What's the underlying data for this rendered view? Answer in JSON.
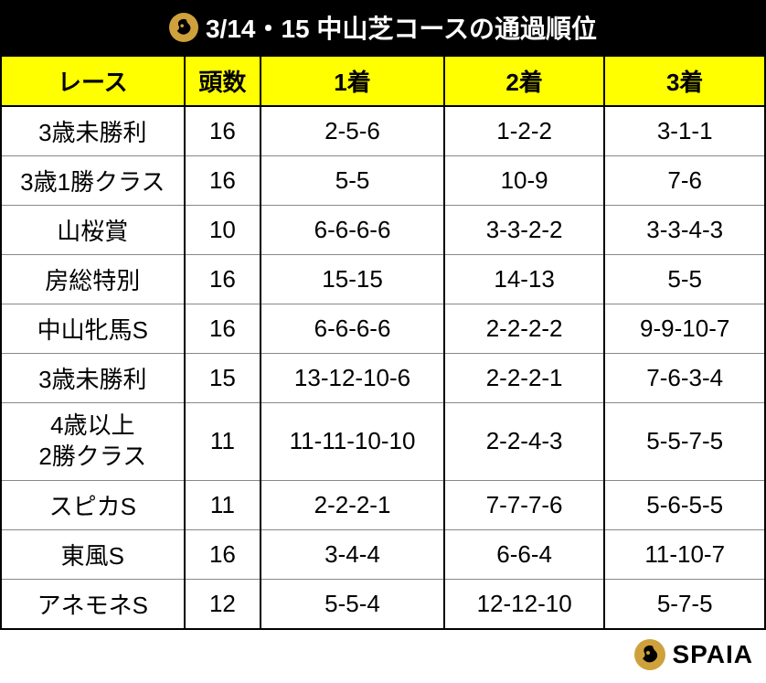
{
  "title": {
    "text": "3/14・15 中山芝コースの通過順位",
    "background_color": "#000000",
    "text_color": "#ffffff",
    "fontsize": 28
  },
  "table": {
    "header_background": "#ffff00",
    "header_color": "#000000",
    "cell_fontsize": 26,
    "border_color": "#000000",
    "row_border_color": "#888888",
    "columns": [
      {
        "label": "レース",
        "width": "24%"
      },
      {
        "label": "頭数",
        "width": "10%"
      },
      {
        "label": "1着",
        "width": "24%"
      },
      {
        "label": "2着",
        "width": "21%"
      },
      {
        "label": "3着",
        "width": "21%"
      }
    ],
    "rows": [
      {
        "race": "3歳未勝利",
        "count": "16",
        "p1": "2-5-6",
        "p2": "1-2-2",
        "p3": "3-1-1"
      },
      {
        "race": "3歳1勝クラス",
        "count": "16",
        "p1": "5-5",
        "p2": "10-9",
        "p3": "7-6"
      },
      {
        "race": "山桜賞",
        "count": "10",
        "p1": "6-6-6-6",
        "p2": "3-3-2-2",
        "p3": "3-3-4-3"
      },
      {
        "race": "房総特別",
        "count": "16",
        "p1": "15-15",
        "p2": "14-13",
        "p3": "5-5"
      },
      {
        "race": "中山牝馬S",
        "count": "16",
        "p1": "6-6-6-6",
        "p2": "2-2-2-2",
        "p3": "9-9-10-7"
      },
      {
        "race": "3歳未勝利",
        "count": "15",
        "p1": "13-12-10-6",
        "p2": "2-2-2-1",
        "p3": "7-6-3-4"
      },
      {
        "race": "4歳以上\n2勝クラス",
        "count": "11",
        "p1": "11-11-10-10",
        "p2": "2-2-4-3",
        "p3": "5-5-7-5"
      },
      {
        "race": "スピカS",
        "count": "11",
        "p1": "2-2-2-1",
        "p2": "7-7-7-6",
        "p3": "5-6-5-5"
      },
      {
        "race": "東風S",
        "count": "16",
        "p1": "3-4-4",
        "p2": "6-6-4",
        "p3": "11-10-7"
      },
      {
        "race": "アネモネS",
        "count": "12",
        "p1": "5-5-4",
        "p2": "12-12-10",
        "p3": "5-7-5"
      }
    ]
  },
  "footer": {
    "brand": "SPAIA",
    "logo_color": "#cfa13c",
    "text_color": "#000000",
    "fontsize": 28
  }
}
